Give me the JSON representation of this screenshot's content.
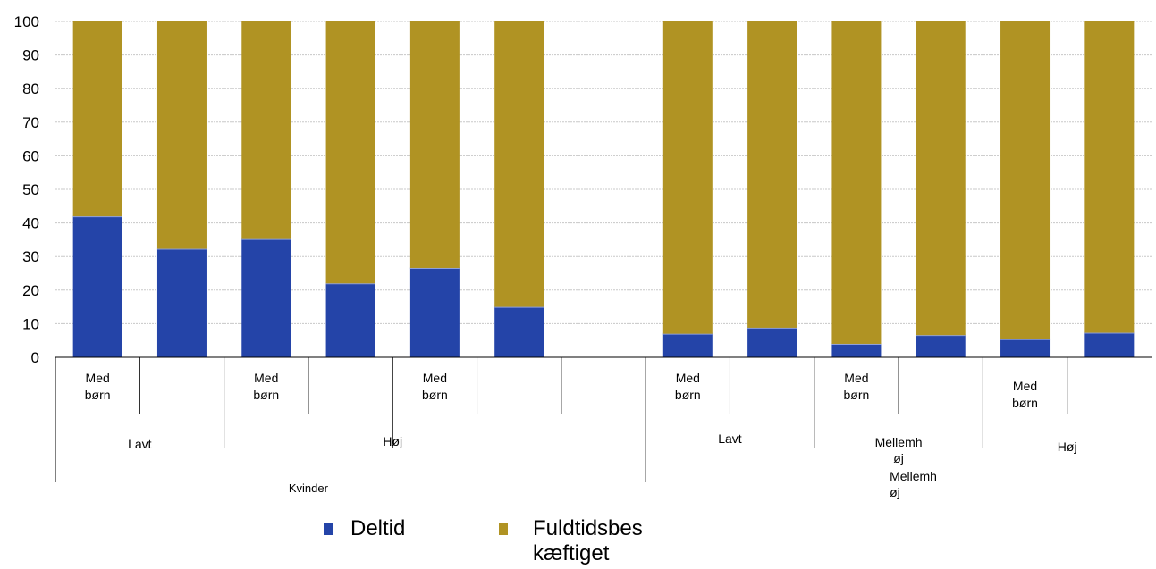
{
  "chart_data": {
    "type": "bar",
    "stacked": true,
    "ylim": [
      0,
      100
    ],
    "yticks": [
      0,
      10,
      20,
      30,
      40,
      50,
      60,
      70,
      80,
      90,
      100
    ],
    "grid": true,
    "categories": [
      "",
      "",
      "",
      "",
      "",
      "",
      "",
      "",
      "",
      "",
      "",
      "",
      ""
    ],
    "series": [
      {
        "name": "Deltid",
        "color": "#2444a8",
        "values": [
          42,
          32.3,
          35.2,
          22,
          26.6,
          15,
          null,
          7,
          8.8,
          4,
          6.6,
          5.4,
          7.3
        ]
      },
      {
        "name": "Fuldtidsbeskæftiget",
        "color": "#b09323",
        "values": [
          58,
          67.7,
          64.8,
          78,
          73.4,
          85,
          null,
          93,
          91.2,
          96,
          93.4,
          94.6,
          92.7
        ]
      }
    ],
    "axis_labels": {
      "level1": [
        "Med\nbørn",
        "Med\nbørn",
        "Med\nbørn",
        "Med\nbørn",
        "Med\nbørn",
        "Med\nbørn"
      ],
      "level2": [
        "Lavt",
        "Høj",
        "Lavt",
        "Mellemh\nøj",
        "Høj"
      ],
      "level2_extra": "Mellemh\nøj",
      "level3": [
        "Kvinder"
      ]
    },
    "legend": {
      "position": "bottom",
      "items": [
        {
          "label": "Deltid",
          "color": "#2444a8"
        },
        {
          "label": "Fuldtidsbes\nkæftiget",
          "color": "#b09323"
        }
      ]
    }
  }
}
